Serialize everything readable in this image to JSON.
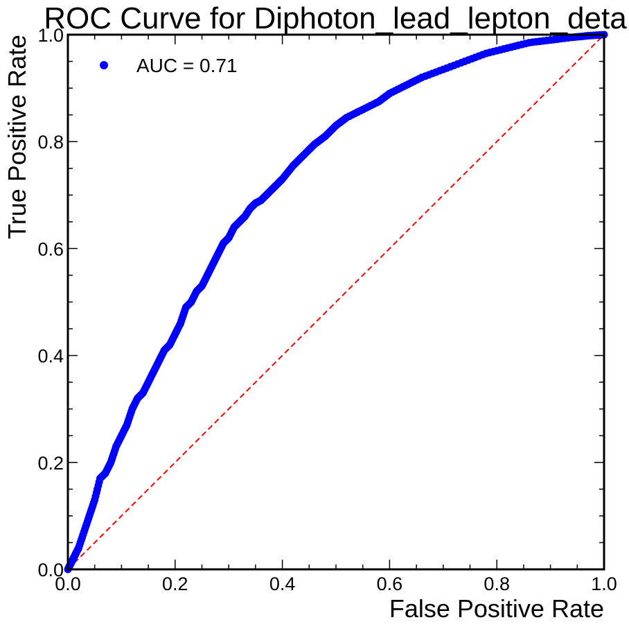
{
  "chart_data": {
    "type": "scatter",
    "title": "ROC Curve for Diphoton_lead_lepton_deta",
    "xlabel": "False Positive Rate",
    "ylabel": "True Positive Rate",
    "xlim": [
      0.0,
      1.0
    ],
    "ylim": [
      0.0,
      1.0
    ],
    "xticks": [
      "0.0",
      "0.2",
      "0.4",
      "0.6",
      "0.8",
      "1.0"
    ],
    "yticks": [
      "0.0",
      "0.2",
      "0.4",
      "0.6",
      "0.8",
      "1.0"
    ],
    "grid": false,
    "legend_position": "top-left",
    "series": [
      {
        "name": "AUC = 0.71",
        "color": "#0000ff",
        "marker": "circle",
        "x": [
          0.0,
          0.005,
          0.01,
          0.015,
          0.02,
          0.03,
          0.04,
          0.05,
          0.06,
          0.07,
          0.08,
          0.09,
          0.1,
          0.11,
          0.12,
          0.13,
          0.14,
          0.15,
          0.16,
          0.17,
          0.18,
          0.19,
          0.2,
          0.21,
          0.22,
          0.23,
          0.24,
          0.25,
          0.26,
          0.27,
          0.28,
          0.29,
          0.3,
          0.31,
          0.32,
          0.33,
          0.34,
          0.35,
          0.36,
          0.37,
          0.38,
          0.39,
          0.4,
          0.42,
          0.44,
          0.46,
          0.48,
          0.5,
          0.52,
          0.55,
          0.58,
          0.6,
          0.63,
          0.66,
          0.7,
          0.74,
          0.78,
          0.82,
          0.86,
          0.9,
          0.94,
          0.97,
          1.0
        ],
        "y": [
          0.0,
          0.01,
          0.02,
          0.03,
          0.04,
          0.07,
          0.1,
          0.13,
          0.17,
          0.18,
          0.2,
          0.23,
          0.25,
          0.27,
          0.3,
          0.32,
          0.33,
          0.35,
          0.37,
          0.39,
          0.41,
          0.42,
          0.44,
          0.46,
          0.49,
          0.5,
          0.52,
          0.53,
          0.55,
          0.57,
          0.59,
          0.61,
          0.62,
          0.64,
          0.65,
          0.66,
          0.675,
          0.685,
          0.69,
          0.7,
          0.71,
          0.72,
          0.73,
          0.755,
          0.775,
          0.795,
          0.81,
          0.83,
          0.845,
          0.86,
          0.875,
          0.89,
          0.905,
          0.92,
          0.935,
          0.95,
          0.965,
          0.975,
          0.985,
          0.99,
          0.995,
          0.998,
          1.0
        ]
      },
      {
        "name": "",
        "color": "#ff0000",
        "line_style": "dashed",
        "x": [
          0.0,
          1.0
        ],
        "y": [
          0.0,
          1.0
        ]
      }
    ]
  }
}
